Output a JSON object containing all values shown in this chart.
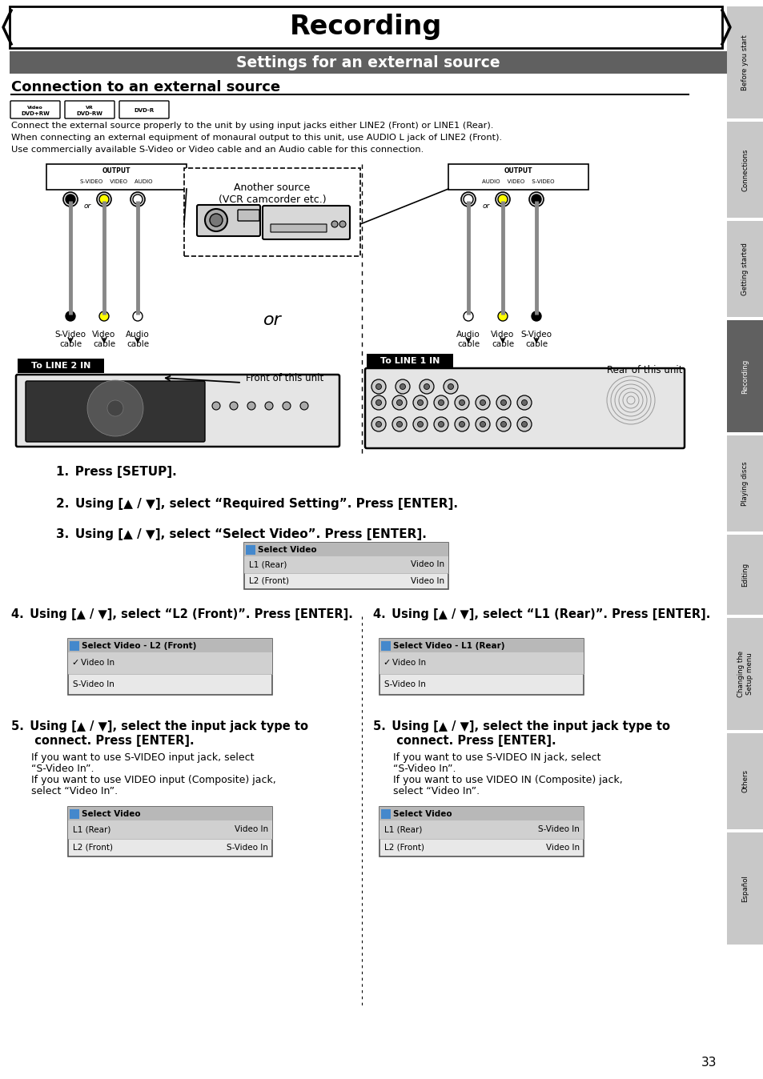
{
  "page_bg": "#ffffff",
  "title": "Recording",
  "subtitle": "Settings for an external source",
  "subtitle_bg": "#606060",
  "subtitle_fg": "#ffffff",
  "section_title": "Connection to an external source",
  "body_text_1": "Connect the external source properly to the unit by using input jacks either LINE2 (Front) or LINE1 (Rear).",
  "body_text_2": "When connecting an external equipment of monaural output to this unit, use AUDIO L jack of LINE2 (Front).",
  "body_text_3": "Use commercially available S-Video or Video cable and an Audio cable for this connection.",
  "tab_bg_inactive": "#c8c8c8",
  "tab_bg_active": "#606060",
  "tab_fg": "#000000",
  "tab_fg_active": "#ffffff",
  "tabs": [
    {
      "label": "Before you start",
      "active": false
    },
    {
      "label": "Connections",
      "active": false
    },
    {
      "label": "Getting started",
      "active": false
    },
    {
      "label": "Recording",
      "active": true
    },
    {
      "label": "Playing discs",
      "active": false
    },
    {
      "label": "Editing",
      "active": false
    },
    {
      "label": "Changing the Setup menu",
      "active": false
    },
    {
      "label": "Others",
      "active": false
    },
    {
      "label": "Español",
      "active": false
    }
  ],
  "page_number": "33"
}
